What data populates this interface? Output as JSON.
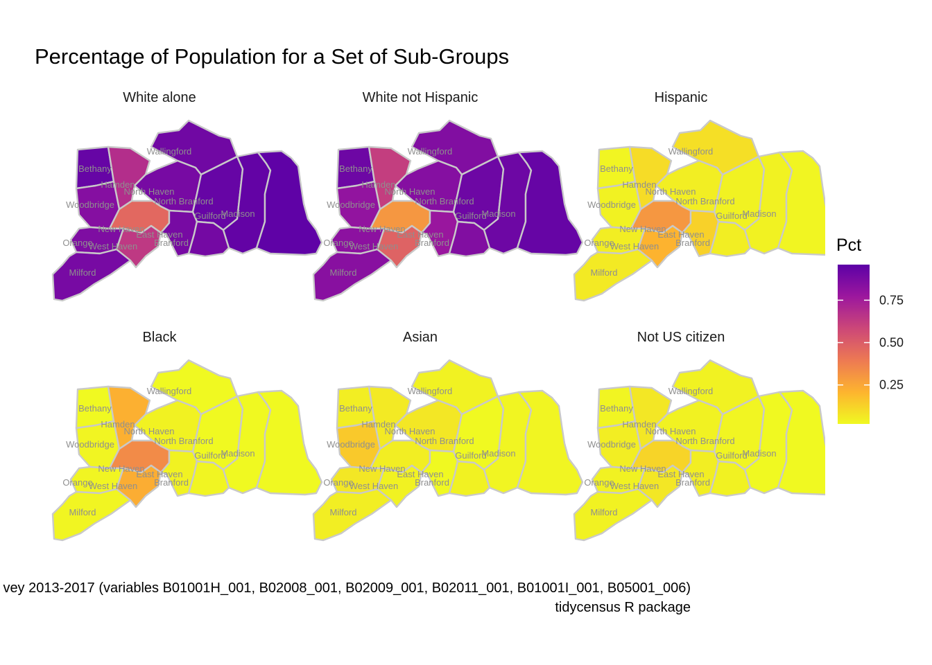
{
  "title": "Percentage of Population for a Set of Sub-Groups",
  "legend": {
    "title": "Pct",
    "ticks": [
      "0.25",
      "0.50",
      "0.75"
    ],
    "tick_values": [
      0.25,
      0.5,
      0.75
    ],
    "range": [
      0.02,
      0.96
    ],
    "palette": [
      "#f0f921",
      "#fdb42f",
      "#ed7953",
      "#cc4778",
      "#9c179e",
      "#5c01a6"
    ]
  },
  "caption": {
    "line1": "vey 2013-2017 (variables B01001H_001, B02008_001, B02009_001, B02011_001, B01001I_001, B05001_006)",
    "line2": "tidycensus R package"
  },
  "towns": [
    "Wallingford",
    "Bethany",
    "Hamden",
    "North Haven",
    "North Branford",
    "Woodbridge",
    "Guilford",
    "Madison",
    "New Haven",
    "East Haven",
    "Orange",
    "West Haven",
    "Branford",
    "Milford"
  ],
  "facets": [
    {
      "name": "White alone",
      "values": {
        "Wallingford": 0.9,
        "Bethany": 0.93,
        "Hamden": 0.68,
        "North Haven": 0.88,
        "North Branford": 0.93,
        "Woodbridge": 0.84,
        "Guilford": 0.94,
        "Madison": 0.95,
        "New Haven": 0.46,
        "East Haven": 0.88,
        "Orange": 0.86,
        "West Haven": 0.64,
        "Branford": 0.89,
        "Milford": 0.88
      }
    },
    {
      "name": "White not Hispanic",
      "values": {
        "Wallingford": 0.85,
        "Bethany": 0.91,
        "Hamden": 0.62,
        "North Haven": 0.84,
        "North Branford": 0.91,
        "Woodbridge": 0.8,
        "Guilford": 0.91,
        "Madison": 0.93,
        "New Haven": 0.3,
        "East Haven": 0.78,
        "Orange": 0.82,
        "West Haven": 0.48,
        "Branford": 0.85,
        "Milford": 0.83
      }
    },
    {
      "name": "Hispanic",
      "values": {
        "Wallingford": 0.09,
        "Bethany": 0.03,
        "Hamden": 0.1,
        "North Haven": 0.05,
        "North Branford": 0.04,
        "Woodbridge": 0.04,
        "Guilford": 0.04,
        "Madison": 0.03,
        "New Haven": 0.3,
        "East Haven": 0.13,
        "Orange": 0.05,
        "West Haven": 0.21,
        "Branford": 0.05,
        "Milford": 0.06
      }
    },
    {
      "name": "Black",
      "values": {
        "Wallingford": 0.02,
        "Bethany": 0.02,
        "Hamden": 0.22,
        "North Haven": 0.04,
        "North Branford": 0.02,
        "Woodbridge": 0.03,
        "Guilford": 0.02,
        "Madison": 0.01,
        "New Haven": 0.34,
        "East Haven": 0.04,
        "Orange": 0.03,
        "West Haven": 0.23,
        "Branford": 0.03,
        "Milford": 0.03
      }
    },
    {
      "name": "Asian",
      "values": {
        "Wallingford": 0.04,
        "Bethany": 0.05,
        "Hamden": 0.06,
        "North Haven": 0.07,
        "North Branford": 0.02,
        "Woodbridge": 0.15,
        "Guilford": 0.03,
        "Madison": 0.03,
        "New Haven": 0.05,
        "East Haven": 0.02,
        "Orange": 0.07,
        "West Haven": 0.04,
        "Branford": 0.04,
        "Milford": 0.05
      }
    },
    {
      "name": "Not US citizen",
      "values": {
        "Wallingford": 0.04,
        "Bethany": 0.03,
        "Hamden": 0.07,
        "North Haven": 0.04,
        "North Branford": 0.03,
        "Woodbridge": 0.05,
        "Guilford": 0.02,
        "Madison": 0.02,
        "New Haven": 0.12,
        "East Haven": 0.05,
        "Orange": 0.04,
        "West Haven": 0.07,
        "Branford": 0.04,
        "Milford": 0.04
      }
    }
  ]
}
